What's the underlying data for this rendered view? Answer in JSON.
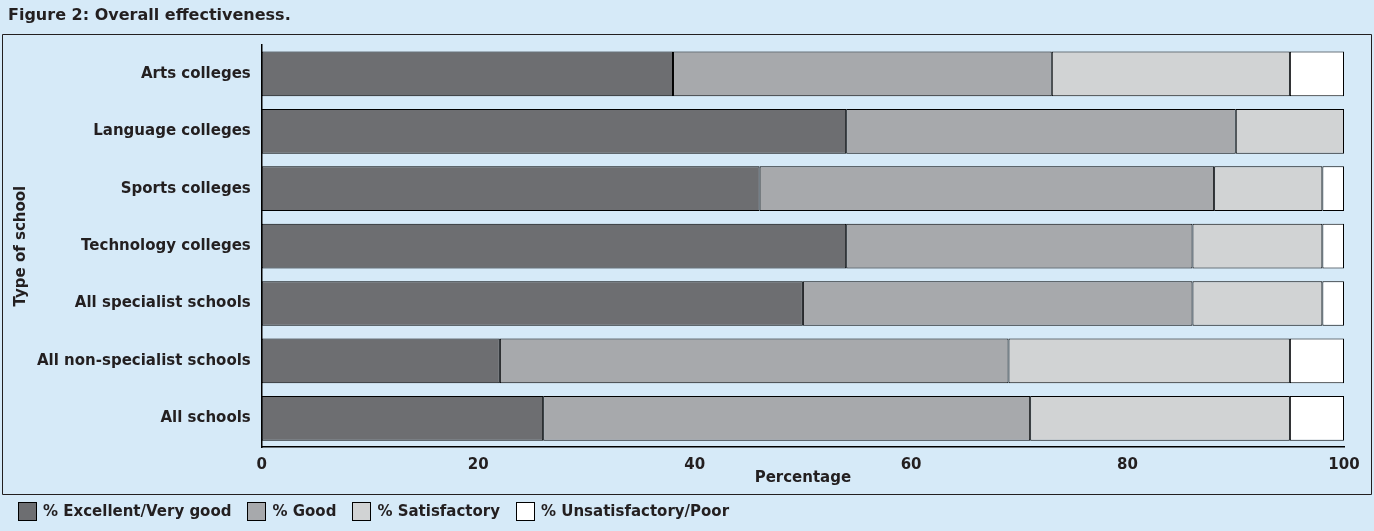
{
  "chart_data": {
    "type": "bar",
    "orientation": "horizontal",
    "stacked": true,
    "title": "Figure 2: Overall effectiveness.",
    "xlabel": "Percentage",
    "ylabel": "Type of school",
    "categories": [
      "Arts colleges",
      "Language colleges",
      "Sports colleges",
      "Technology colleges",
      "All specialist schools",
      "All non-specialist schools",
      "All schools"
    ],
    "series": [
      {
        "name": "% Excellent/Very good",
        "color": "#6d6e71",
        "values": [
          38,
          54,
          46,
          54,
          50,
          22,
          26
        ]
      },
      {
        "name": "% Good",
        "color": "#a7a9ac",
        "values": [
          35,
          36,
          42,
          32,
          36,
          47,
          45
        ]
      },
      {
        "name": "% Satisfactory",
        "color": "#d1d3d4",
        "values": [
          22,
          10,
          10,
          12,
          12,
          26,
          24
        ]
      },
      {
        "name": "% Unsatisfactory/Poor",
        "color": "#ffffff",
        "values": [
          5,
          0,
          2,
          2,
          2,
          5,
          5
        ]
      }
    ],
    "xlim": [
      0,
      100
    ],
    "xticks": [
      0,
      20,
      40,
      60,
      80,
      100
    ],
    "grid": false,
    "legend": "bottom left"
  }
}
